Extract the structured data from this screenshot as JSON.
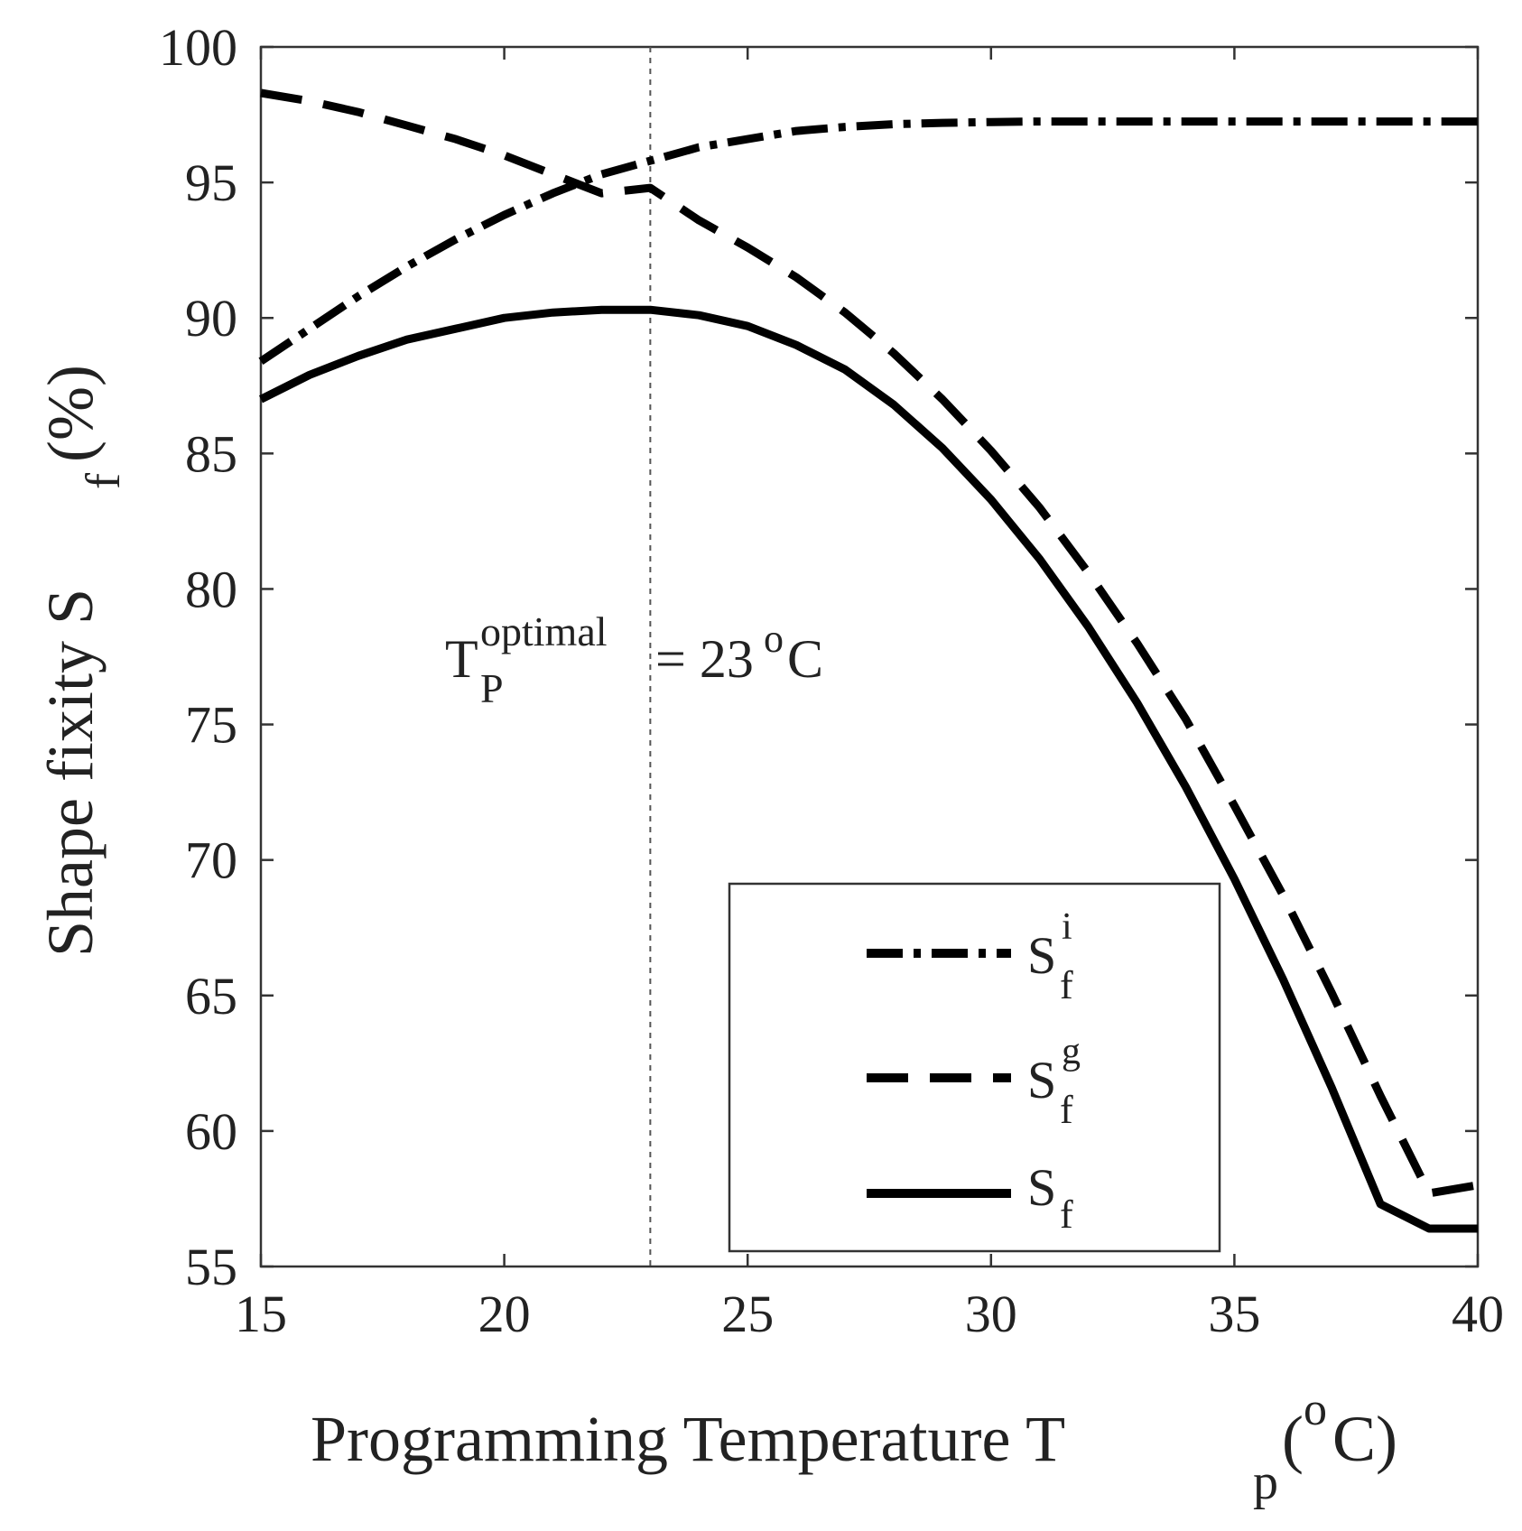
{
  "chart_data": {
    "type": "line",
    "xlabel": {
      "main": "Programming Temperature T",
      "sub": "p",
      "paren_open": "(",
      "sup": "o",
      "unit": "C)"
    },
    "ylabel": {
      "main": "Shape fixity S",
      "sub": "f",
      "unit": "(%)"
    },
    "xlim": [
      15,
      40
    ],
    "ylim": [
      55,
      100
    ],
    "xticks": [
      15,
      20,
      25,
      30,
      35,
      40
    ],
    "yticks": [
      55,
      60,
      65,
      70,
      75,
      80,
      85,
      90,
      95,
      100
    ],
    "grid": false,
    "legend_position": "bottom-right",
    "series": [
      {
        "name": "Sf_i",
        "label_main": "S",
        "label_sub": "f",
        "label_sup": "i",
        "style": "dash-dot",
        "x": [
          15,
          16,
          17,
          18,
          19,
          20,
          21,
          22,
          23,
          24,
          25,
          26,
          27,
          28,
          29,
          30,
          31,
          32,
          33,
          34,
          35,
          36,
          37,
          38,
          39,
          40
        ],
        "y": [
          88.4,
          89.6,
          90.8,
          91.9,
          92.9,
          93.8,
          94.6,
          95.3,
          95.8,
          96.3,
          96.6,
          96.9,
          97.05,
          97.15,
          97.2,
          97.23,
          97.25,
          97.25,
          97.25,
          97.25,
          97.25,
          97.25,
          97.25,
          97.25,
          97.25,
          97.25
        ]
      },
      {
        "name": "Sf_g",
        "label_main": "S",
        "label_sub": "f",
        "label_sup": "g",
        "style": "dashed",
        "x": [
          15,
          16,
          17,
          18,
          19,
          20,
          21,
          22,
          23,
          24,
          25,
          26,
          27,
          28,
          29,
          30,
          31,
          32,
          33,
          34,
          35,
          36,
          37,
          38,
          39,
          40
        ],
        "y": [
          98.3,
          98.0,
          97.6,
          97.1,
          96.6,
          96.0,
          95.3,
          94.6,
          94.8,
          93.6,
          92.6,
          91.5,
          90.2,
          88.7,
          87.0,
          85.1,
          83.0,
          80.6,
          78.0,
          75.2,
          72.0,
          68.7,
          65.1,
          61.3,
          57.7,
          58.0
        ]
      },
      {
        "name": "Sf",
        "label_main": "S",
        "label_sub": "f",
        "label_sup": "",
        "style": "solid",
        "x": [
          15,
          16,
          17,
          18,
          19,
          20,
          21,
          22,
          23,
          24,
          25,
          26,
          27,
          28,
          29,
          30,
          31,
          32,
          33,
          34,
          35,
          36,
          37,
          38,
          39,
          40
        ],
        "y": [
          87.0,
          87.9,
          88.6,
          89.2,
          89.6,
          90.0,
          90.2,
          90.3,
          90.3,
          90.1,
          89.7,
          89.0,
          88.1,
          86.8,
          85.2,
          83.3,
          81.1,
          78.6,
          75.8,
          72.7,
          69.3,
          65.6,
          61.6,
          57.3,
          56.4,
          56.4
        ]
      }
    ],
    "reference_line": {
      "x": 23,
      "style": "dotted"
    },
    "annotation": {
      "main": "T",
      "sup": "optimal",
      "sub": "P",
      "eq": "= 23",
      "deg": "o",
      "unit": "C"
    }
  }
}
